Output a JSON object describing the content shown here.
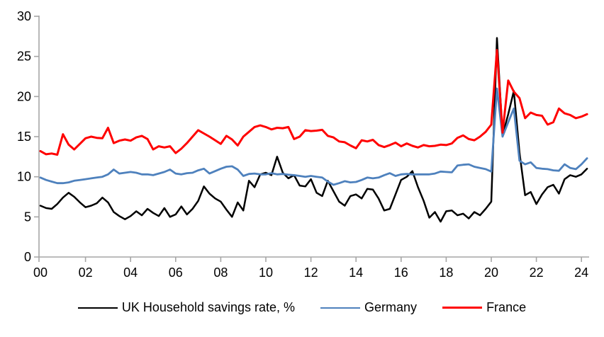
{
  "chart_data": {
    "type": "line",
    "title": "",
    "xlabel": "",
    "ylabel": "",
    "x_unit": "year (quarterly observations)",
    "x_range_years": [
      2000,
      2024.25
    ],
    "ylim": [
      0,
      30
    ],
    "y_tick_step": 5,
    "y_tick_labels": [
      "0",
      "5",
      "10",
      "15",
      "20",
      "25",
      "30"
    ],
    "x_tick_labels": [
      "00",
      "02",
      "04",
      "06",
      "08",
      "10",
      "12",
      "14",
      "16",
      "18",
      "20",
      "22",
      "24"
    ],
    "grid": false,
    "legend_position": "bottom-center",
    "axis_color": "#a6a6a6",
    "background_color": "#ffffff",
    "series": [
      {
        "name": "UK Household savings rate, %",
        "color": "#000000",
        "line_width": 2.5,
        "values": [
          6.4,
          6.1,
          6.0,
          6.6,
          7.4,
          8.0,
          7.5,
          6.8,
          6.2,
          6.4,
          6.7,
          7.4,
          6.8,
          5.6,
          5.1,
          4.7,
          5.1,
          5.7,
          5.2,
          6.0,
          5.5,
          5.1,
          6.1,
          5.0,
          5.3,
          6.3,
          5.3,
          6.0,
          7.0,
          8.8,
          7.9,
          7.3,
          6.9,
          5.9,
          5.0,
          6.8,
          5.8,
          9.5,
          8.7,
          10.3,
          10.5,
          10.2,
          12.5,
          10.5,
          9.8,
          10.2,
          8.9,
          8.8,
          9.7,
          8.0,
          7.6,
          9.5,
          8.2,
          6.9,
          6.4,
          7.6,
          7.8,
          7.3,
          8.5,
          8.4,
          7.3,
          5.8,
          6.0,
          7.8,
          9.6,
          10.0,
          10.7,
          8.7,
          7.0,
          4.9,
          5.6,
          4.4,
          5.7,
          5.8,
          5.2,
          5.4,
          4.8,
          5.6,
          5.2,
          6.0,
          6.9,
          27.3,
          15.2,
          17.8,
          20.7,
          13.0,
          7.7,
          8.1,
          6.6,
          7.8,
          8.7,
          9.0,
          7.9,
          9.7,
          10.2,
          10.0,
          10.3,
          11.0
        ]
      },
      {
        "name": "Germany",
        "color": "#4e81bd",
        "line_width": 2.8,
        "values": [
          9.9,
          9.6,
          9.4,
          9.2,
          9.2,
          9.3,
          9.5,
          9.6,
          9.7,
          9.8,
          9.9,
          10.0,
          10.3,
          10.9,
          10.4,
          10.5,
          10.6,
          10.5,
          10.3,
          10.3,
          10.2,
          10.4,
          10.6,
          10.9,
          10.4,
          10.3,
          10.45,
          10.5,
          10.8,
          11.0,
          10.4,
          10.7,
          11.0,
          11.25,
          11.3,
          10.9,
          10.1,
          10.35,
          10.4,
          10.3,
          10.3,
          10.45,
          10.3,
          10.35,
          10.25,
          10.2,
          10.1,
          10.0,
          10.1,
          10.0,
          9.9,
          9.4,
          9.0,
          9.2,
          9.45,
          9.3,
          9.35,
          9.6,
          9.9,
          9.8,
          9.9,
          10.2,
          10.45,
          10.1,
          10.3,
          10.35,
          10.3,
          10.3,
          10.3,
          10.3,
          10.4,
          10.65,
          10.6,
          10.55,
          11.4,
          11.5,
          11.55,
          11.25,
          11.1,
          10.95,
          10.65,
          21.0,
          15.0,
          16.8,
          18.5,
          12.0,
          11.55,
          11.8,
          11.1,
          11.0,
          10.95,
          10.8,
          10.75,
          11.55,
          11.1,
          10.95,
          11.55,
          12.3
        ]
      },
      {
        "name": "France",
        "color": "#ff0000",
        "line_width": 3.0,
        "values": [
          13.2,
          12.8,
          12.9,
          12.75,
          15.3,
          14.0,
          13.4,
          14.1,
          14.8,
          15.0,
          14.85,
          14.8,
          16.1,
          14.2,
          14.5,
          14.65,
          14.5,
          14.9,
          15.1,
          14.7,
          13.4,
          13.8,
          13.65,
          13.8,
          12.95,
          13.5,
          14.2,
          15.0,
          15.8,
          15.4,
          15.0,
          14.55,
          14.1,
          15.1,
          14.65,
          13.9,
          15.0,
          15.6,
          16.2,
          16.4,
          16.2,
          15.9,
          16.1,
          16.05,
          16.2,
          14.7,
          15.0,
          15.8,
          15.7,
          15.75,
          15.85,
          15.1,
          14.9,
          14.4,
          14.3,
          13.9,
          13.55,
          14.55,
          14.4,
          14.6,
          13.95,
          13.7,
          13.95,
          14.25,
          13.8,
          14.15,
          13.85,
          13.65,
          13.95,
          13.8,
          13.85,
          14.0,
          13.95,
          14.15,
          14.85,
          15.15,
          14.7,
          14.55,
          15.0,
          15.6,
          16.5,
          25.8,
          15.5,
          22.0,
          20.6,
          19.8,
          17.3,
          18.0,
          17.7,
          17.6,
          16.5,
          16.8,
          18.5,
          17.9,
          17.7,
          17.3,
          17.5,
          17.8
        ]
      }
    ]
  },
  "legend": {
    "items": [
      {
        "label": "UK Household savings rate, %",
        "color": "#000000"
      },
      {
        "label": "Germany",
        "color": "#4e81bd"
      },
      {
        "label": "France",
        "color": "#ff0000"
      }
    ]
  }
}
